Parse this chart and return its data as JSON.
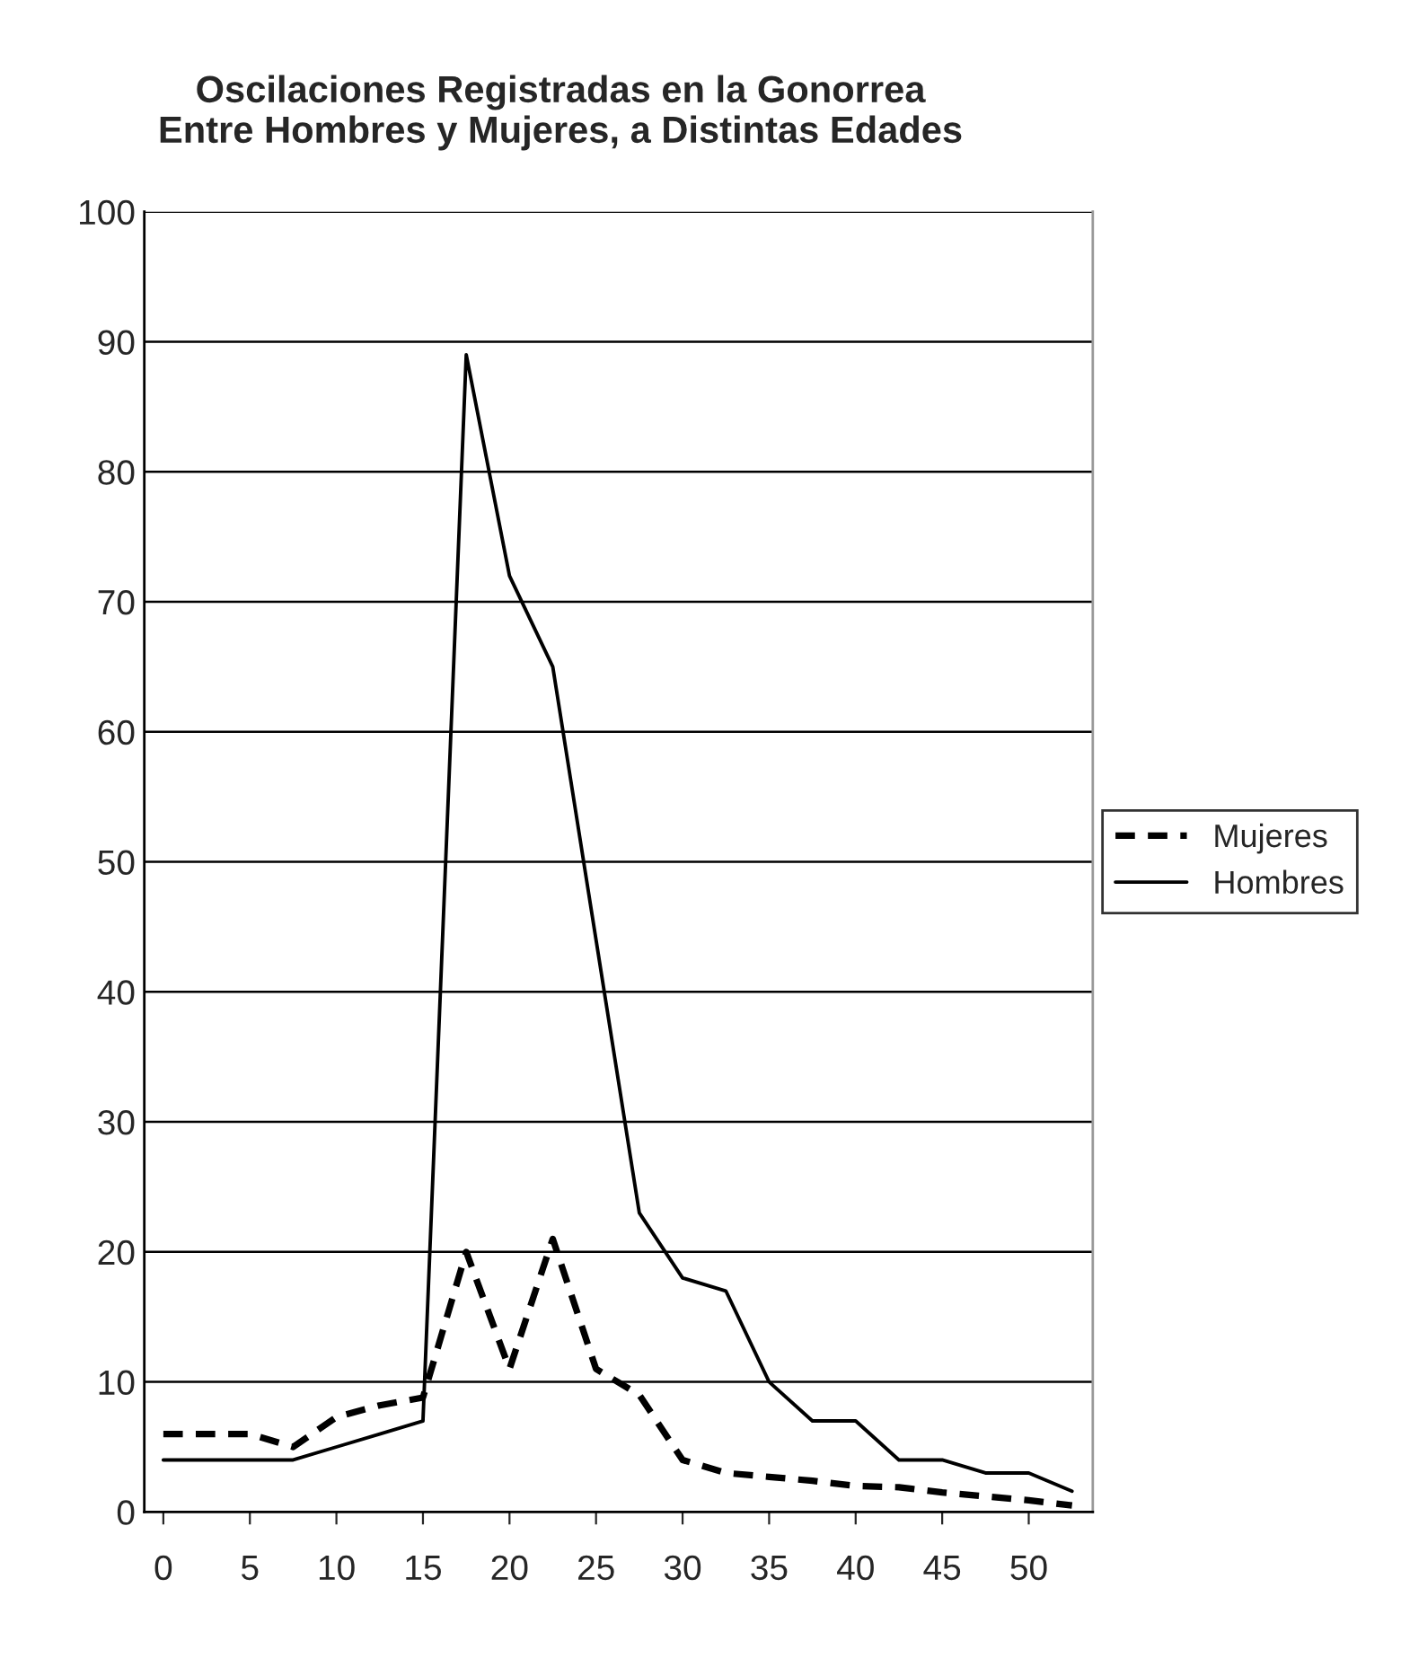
{
  "chart_data": {
    "type": "line",
    "title": "Oscilaciones Registradas en la Gonorrea\nEntre Hombres y Mujeres, a Distintas Edades",
    "x": [
      0,
      2.5,
      5,
      7.5,
      10,
      12.5,
      15,
      17.5,
      20,
      22.5,
      25,
      27.5,
      30,
      32.5,
      35,
      37.5,
      40,
      42.5,
      45,
      47.5,
      50,
      52.5
    ],
    "series": [
      {
        "name": "Mujeres",
        "color": "#000000",
        "line_style": "dashed",
        "values": [
          6,
          6,
          6,
          5,
          7.3,
          8.2,
          8.8,
          20,
          11,
          21,
          11,
          9,
          4,
          3,
          2.7,
          2.4,
          2,
          1.9,
          1.5,
          1.2,
          0.9,
          0.5
        ]
      },
      {
        "name": "Hombres",
        "color": "#000000",
        "line_style": "solid",
        "values": [
          4,
          4,
          4,
          4,
          5,
          6,
          7,
          89,
          72,
          65,
          44,
          23,
          18,
          17,
          10,
          7,
          7,
          4,
          4,
          3,
          3,
          1.6
        ]
      }
    ],
    "xlim": [
      -1.1,
      53.7
    ],
    "xticks": [
      0,
      5,
      10,
      15,
      20,
      25,
      30,
      35,
      40,
      45,
      50
    ],
    "ylim": [
      0,
      100
    ],
    "yticks": [
      0,
      10,
      20,
      30,
      40,
      50,
      60,
      70,
      80,
      90,
      100
    ],
    "grid": "y",
    "legend": "right",
    "marker": "none"
  }
}
